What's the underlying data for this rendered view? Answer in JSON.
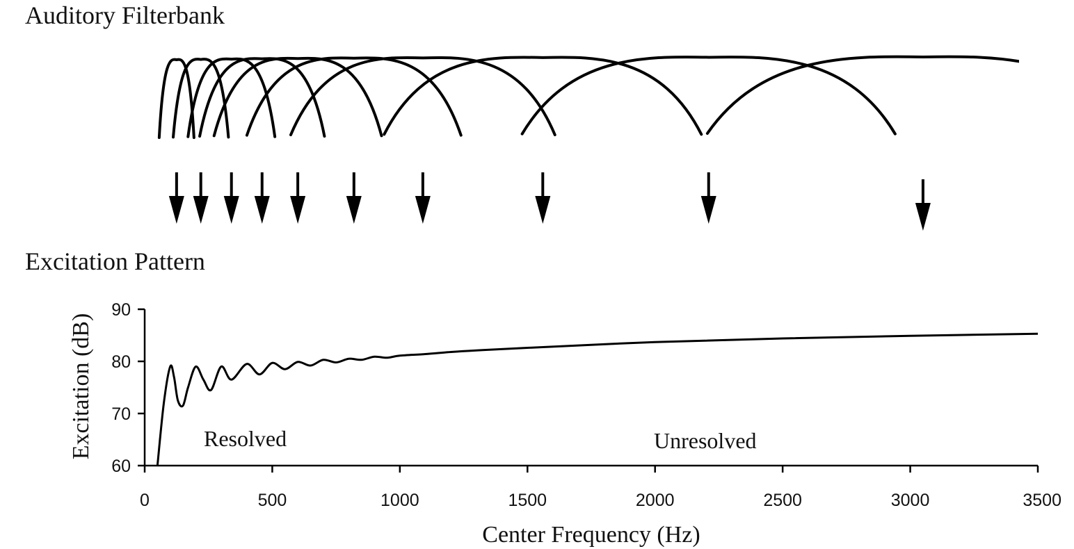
{
  "figure": {
    "top_panel_title": "Auditory Filterbank",
    "bottom_panel_title": "Excitation Pattern"
  },
  "chart_data": [
    {
      "type": "diagram",
      "title": "Auditory Filterbank",
      "filter_center_frequencies_hz": [
        125,
        220,
        340,
        460,
        600,
        820,
        1090,
        1560,
        2210,
        3050
      ]
    },
    {
      "type": "line",
      "title": "Excitation Pattern",
      "xlabel": "Center Frequency (Hz)",
      "ylabel": "Excitation (dB)",
      "xlim": [
        0,
        3500
      ],
      "ylim": [
        60,
        90
      ],
      "x_ticks": [
        "0",
        "500",
        "1000",
        "1500",
        "2000",
        "2500",
        "3000",
        "3500"
      ],
      "y_ticks": [
        "60",
        "70",
        "80",
        "90"
      ],
      "annotations": [
        "Resolved",
        "Unresolved"
      ],
      "grid": false,
      "series": [
        {
          "x": [
            50,
            75,
            100,
            115,
            130,
            150,
            170,
            200,
            230,
            260,
            300,
            340,
            400,
            450,
            500,
            550,
            600,
            650,
            700,
            750,
            800,
            850,
            900,
            950,
            1000,
            1100,
            1200,
            1300,
            1500,
            2000,
            2500,
            3000,
            3500
          ],
          "values": [
            60,
            72,
            79,
            77,
            72.5,
            71.5,
            75,
            79,
            76.5,
            74.5,
            79,
            76.5,
            79.5,
            77.5,
            79.7,
            78.5,
            79.9,
            79.2,
            80.3,
            79.8,
            80.5,
            80.3,
            80.9,
            80.7,
            81.1,
            81.4,
            81.8,
            82.1,
            82.6,
            83.7,
            84.4,
            84.9,
            85.3
          ]
        }
      ]
    }
  ]
}
